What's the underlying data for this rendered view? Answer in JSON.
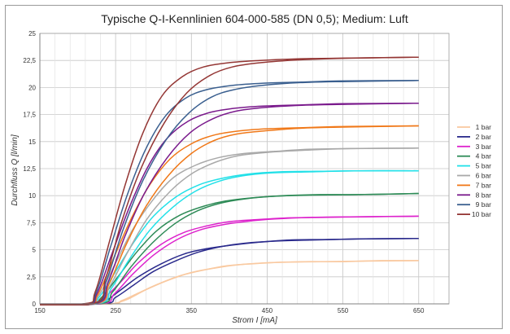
{
  "chart_data": {
    "type": "line",
    "title": "Typische Q-I-Kennlinien 604-000-585 (DN 0,5); Medium: Luft",
    "xlabel": "Strom I [mA]",
    "ylabel": "Durchfluss Q [l/min]",
    "xlim": [
      150,
      690
    ],
    "ylim": [
      0,
      25
    ],
    "xticks": [
      "150",
      "250",
      "350",
      "450",
      "550",
      "650"
    ],
    "yticks": [
      "0",
      "2,5",
      "5",
      "7,5",
      "10",
      "12,5",
      "15",
      "17,5",
      "20",
      "22,5",
      "25"
    ],
    "grid": true,
    "legend_position": "right",
    "series": [
      {
        "name": "1 bar",
        "color": "#f9c9a0",
        "curves": [
          {
            "x": [
              100,
              225,
              245,
              265,
              290,
              320,
              350,
              380,
              410,
              450,
              500,
              550,
              600,
              650
            ],
            "y": [
              0,
              0,
              0,
              0.4,
              1.3,
              2.2,
              2.9,
              3.3,
              3.6,
              3.8,
              3.9,
              3.9,
              4.0,
              4.0
            ]
          },
          {
            "x": [
              100,
              238,
              258,
              280,
              305,
              335,
              365,
              395,
              430,
              470,
              520,
              580,
              650
            ],
            "y": [
              0,
              0,
              0.3,
              1.0,
              1.8,
              2.6,
              3.1,
              3.5,
              3.7,
              3.85,
              3.9,
              3.95,
              4.0
            ]
          }
        ]
      },
      {
        "name": "2 bar",
        "color": "#2a2a8c",
        "curves": [
          {
            "x": [
              100,
              218,
              235,
              255,
              280,
              310,
              340,
              370,
              400,
              440,
              480,
              530,
              580,
              650
            ],
            "y": [
              0,
              0,
              0.2,
              1.2,
              2.5,
              3.7,
              4.6,
              5.1,
              5.4,
              5.7,
              5.9,
              5.95,
              6.0,
              6.05
            ]
          },
          {
            "x": [
              100,
              230,
              250,
              275,
              300,
              330,
              360,
              390,
              420,
              460,
              510,
              570,
              650
            ],
            "y": [
              0,
              0,
              0.6,
              1.8,
              3.0,
              4.0,
              4.8,
              5.3,
              5.6,
              5.8,
              5.9,
              6.0,
              6.05
            ]
          }
        ]
      },
      {
        "name": "3 bar",
        "color": "#dd22cc",
        "curves": [
          {
            "x": [
              100,
              215,
              232,
              255,
              280,
              310,
              340,
              370,
              400,
              440,
              480,
              530,
              580,
              650
            ],
            "y": [
              0,
              0,
              0.4,
              1.9,
              3.8,
              5.5,
              6.6,
              7.2,
              7.6,
              7.8,
              7.95,
              8.0,
              8.05,
              8.1
            ]
          },
          {
            "x": [
              100,
              228,
              248,
              272,
              300,
              330,
              360,
              390,
              420,
              460,
              510,
              570,
              650
            ],
            "y": [
              0,
              0,
              0.9,
              2.7,
              4.5,
              5.9,
              6.8,
              7.3,
              7.6,
              7.85,
              8.0,
              8.05,
              8.1
            ]
          }
        ]
      },
      {
        "name": "4 bar",
        "color": "#2e8b57",
        "curves": [
          {
            "x": [
              100,
              213,
              230,
              252,
              278,
              305,
              335,
              365,
              395,
              430,
              470,
              520,
              570,
              650
            ],
            "y": [
              0,
              0,
              0.5,
              2.4,
              4.8,
              6.8,
              8.2,
              9.0,
              9.5,
              9.8,
              10.0,
              10.1,
              10.1,
              10.2
            ]
          },
          {
            "x": [
              100,
              226,
              246,
              270,
              298,
              328,
              358,
              388,
              420,
              460,
              510,
              570,
              650
            ],
            "y": [
              0,
              0,
              1.1,
              3.4,
              5.6,
              7.4,
              8.6,
              9.3,
              9.7,
              9.95,
              10.05,
              10.1,
              10.2
            ]
          }
        ]
      },
      {
        "name": "5 bar",
        "color": "#22e0e8",
        "curves": [
          {
            "x": [
              100,
              212,
              228,
              250,
              275,
              300,
              330,
              360,
              390,
              425,
              465,
              515,
              565,
              650
            ],
            "y": [
              0,
              0,
              0.6,
              3.0,
              5.8,
              8.1,
              9.9,
              11.0,
              11.6,
              12.0,
              12.2,
              12.25,
              12.3,
              12.3
            ]
          },
          {
            "x": [
              100,
              224,
              244,
              268,
              295,
              325,
              355,
              385,
              415,
              455,
              505,
              565,
              650
            ],
            "y": [
              0,
              0,
              1.4,
              4.1,
              6.8,
              8.9,
              10.4,
              11.3,
              11.8,
              12.1,
              12.2,
              12.3,
              12.3
            ]
          }
        ]
      },
      {
        "name": "6 bar",
        "color": "#a9a9a9",
        "curves": [
          {
            "x": [
              100,
              211,
              227,
              248,
              272,
              298,
              325,
              355,
              385,
              420,
              460,
              510,
              560,
              650
            ],
            "y": [
              0,
              0,
              0.7,
              3.5,
              6.8,
              9.5,
              11.6,
              12.8,
              13.5,
              13.9,
              14.1,
              14.3,
              14.35,
              14.4
            ]
          },
          {
            "x": [
              100,
              223,
              242,
              266,
              292,
              322,
              352,
              382,
              412,
              450,
              500,
              560,
              650
            ],
            "y": [
              0,
              0,
              1.6,
              4.8,
              7.9,
              10.4,
              12.1,
              13.1,
              13.7,
              14.0,
              14.2,
              14.35,
              14.4
            ]
          }
        ]
      },
      {
        "name": "7 bar",
        "color": "#f07818",
        "curves": [
          {
            "x": [
              100,
              210,
              226,
              246,
              270,
              295,
              322,
              350,
              380,
              415,
              455,
              505,
              555,
              650
            ],
            "y": [
              0,
              0,
              0.8,
              4.0,
              7.8,
              11.0,
              13.4,
              14.8,
              15.6,
              16.0,
              16.2,
              16.3,
              16.4,
              16.45
            ]
          },
          {
            "x": [
              100,
              222,
              241,
              264,
              290,
              320,
              350,
              380,
              410,
              448,
              498,
              558,
              650
            ],
            "y": [
              0,
              0,
              1.8,
              5.5,
              9.0,
              11.9,
              13.9,
              15.1,
              15.7,
              16.0,
              16.25,
              16.35,
              16.45
            ]
          }
        ]
      },
      {
        "name": "8 bar",
        "color": "#7a1a8c",
        "curves": [
          {
            "x": [
              100,
              209,
              225,
              245,
              268,
              292,
              318,
              346,
              375,
              410,
              450,
              500,
              550,
              650
            ],
            "y": [
              0,
              0,
              0.9,
              4.6,
              8.9,
              12.6,
              15.3,
              16.9,
              17.7,
              18.1,
              18.3,
              18.4,
              18.5,
              18.55
            ]
          },
          {
            "x": [
              100,
              221,
              240,
              262,
              288,
              318,
              348,
              378,
              408,
              446,
              496,
              556,
              650
            ],
            "y": [
              0,
              0,
              2.0,
              6.2,
              10.2,
              13.5,
              15.8,
              17.1,
              17.8,
              18.15,
              18.35,
              18.45,
              18.55
            ]
          }
        ]
      },
      {
        "name": "9 bar",
        "color": "#3a5f8f",
        "curves": [
          {
            "x": [
              100,
              208,
              224,
              243,
              265,
              289,
              315,
              342,
              370,
              405,
              445,
              495,
              545,
              650
            ],
            "y": [
              0,
              0,
              1.0,
              5.2,
              10.0,
              14.2,
              17.3,
              19.0,
              19.8,
              20.2,
              20.4,
              20.5,
              20.6,
              20.65
            ]
          },
          {
            "x": [
              100,
              220,
              238,
              260,
              286,
              316,
              346,
              376,
              406,
              444,
              494,
              554,
              650
            ],
            "y": [
              0,
              0,
              2.2,
              6.9,
              11.4,
              15.1,
              17.6,
              19.1,
              19.8,
              20.2,
              20.45,
              20.55,
              20.65
            ]
          }
        ]
      },
      {
        "name": "10 bar",
        "color": "#943634",
        "curves": [
          {
            "x": [
              100,
              207,
              223,
              242,
              263,
              286,
              311,
              338,
              366,
              400,
              440,
              490,
              540,
              650
            ],
            "y": [
              0,
              0,
              1.1,
              5.8,
              11.1,
              15.8,
              19.2,
              21.0,
              21.9,
              22.3,
              22.5,
              22.65,
              22.7,
              22.8
            ]
          },
          {
            "x": [
              100,
              219,
              237,
              258,
              284,
              314,
              344,
              374,
              404,
              442,
              492,
              552,
              650
            ],
            "y": [
              0,
              0,
              2.4,
              7.6,
              12.6,
              16.7,
              19.5,
              21.1,
              21.9,
              22.3,
              22.55,
              22.7,
              22.8
            ]
          }
        ]
      }
    ]
  }
}
